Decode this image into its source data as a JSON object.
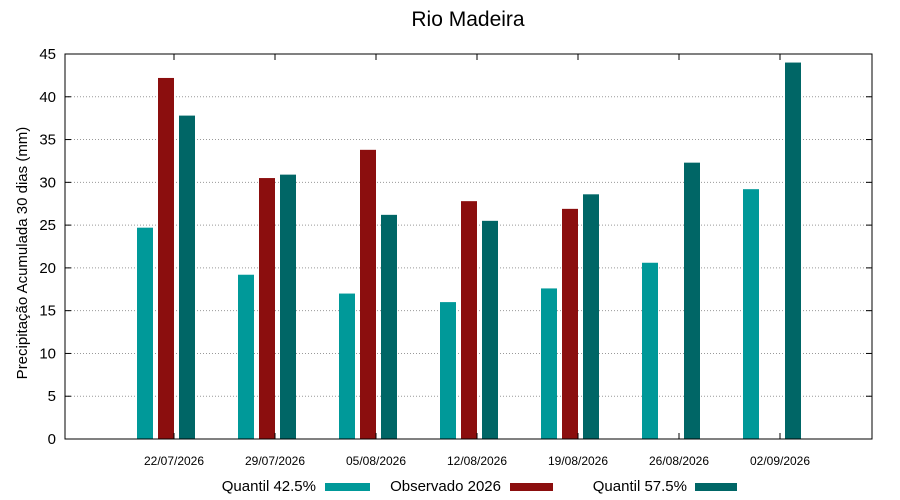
{
  "chart_data": {
    "type": "bar",
    "title": "Rio Madeira",
    "xlabel": "",
    "ylabel": "Precipitação Acumulada 30 dias (mm)",
    "ylim": [
      0,
      45
    ],
    "yticks": [
      0,
      5,
      10,
      15,
      20,
      25,
      30,
      35,
      40,
      45
    ],
    "grid": true,
    "legend_position": "bottom",
    "categories": [
      "22/07/2026",
      "29/07/2026",
      "05/08/2026",
      "12/08/2026",
      "19/08/2026",
      "26/08/2026",
      "02/09/2026"
    ],
    "series": [
      {
        "name": "Quantil 42.5%",
        "color": "#009999",
        "values": [
          24.7,
          19.2,
          17.0,
          16.0,
          17.6,
          20.6,
          29.2
        ]
      },
      {
        "name": "Observado 2026",
        "color": "#8b0e0e",
        "values": [
          42.2,
          30.5,
          33.8,
          27.8,
          26.9,
          null,
          null
        ]
      },
      {
        "name": "Quantil 57.5%",
        "color": "#006666",
        "values": [
          37.8,
          30.9,
          26.2,
          25.5,
          28.6,
          32.3,
          44.0
        ]
      }
    ]
  }
}
